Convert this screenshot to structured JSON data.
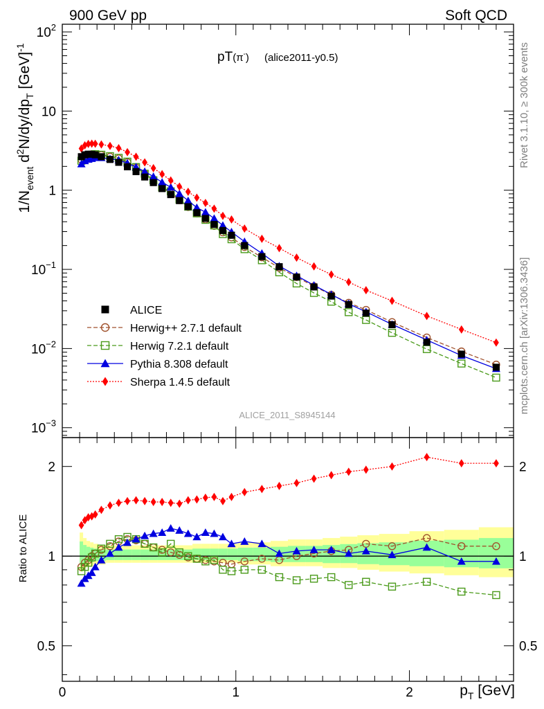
{
  "header": {
    "left": "900 GeV pp",
    "right": "Soft QCD"
  },
  "side": {
    "top": "Rivet 3.1.10, ≥ 300k events",
    "bottom": "mcplots.cern.ch [arXiv:1306.3436]"
  },
  "plot": {
    "title_main": "pT",
    "title_paren_open": "(",
    "title_pi": "π",
    "title_minus": "-",
    "title_paren_close": ")",
    "title_sub": "(alice2011-y0.5)",
    "watermark": "ALICE_2011_S8945144"
  },
  "axes": {
    "ylabel_main": {
      "a": "1/N",
      "b": "event",
      "c": " d",
      "d": "2",
      "e": "N/dy/dp",
      "f": "T",
      "g": " [GeV]",
      "h": "-1"
    },
    "ylabel_ratio": "Ratio to ALICE",
    "xlabel": {
      "a": "p",
      "b": "T",
      "c": " [GeV]"
    },
    "main_ticks": [
      {
        "v": 100,
        "base": "10",
        "exp": "2"
      },
      {
        "v": 10,
        "base": "10",
        "exp": ""
      },
      {
        "v": 1,
        "base": "1",
        "exp": ""
      },
      {
        "v": 0.1,
        "base": "10",
        "exp": "−1"
      },
      {
        "v": 0.01,
        "base": "10",
        "exp": "−2"
      },
      {
        "v": 0.001,
        "base": "10",
        "exp": "−3"
      }
    ],
    "ratio_ticks": [
      {
        "v": 2,
        "label": "2"
      },
      {
        "v": 1,
        "label": "1"
      },
      {
        "v": 0.5,
        "label": "0.5"
      }
    ],
    "x_ticks": [
      {
        "v": 0,
        "label": "0"
      },
      {
        "v": 1,
        "label": "1"
      },
      {
        "v": 2,
        "label": "2"
      }
    ]
  },
  "legend": {
    "ALICE": "ALICE",
    "herwigpp": "Herwig++ 2.7.1 default",
    "herwig7": "Herwig 7.2.1 default",
    "pythia": "Pythia 8.308 default",
    "sherpa": "Sherpa 1.4.5 default"
  },
  "colors": {
    "ALICE": "#000000",
    "herwigpp": "#a0522d",
    "herwig7": "#4a9a1a",
    "pythia": "#0000e0",
    "sherpa": "#ff0000",
    "band_inner": "#99ff99",
    "band_outer": "#ffff99"
  },
  "chart_data": {
    "type": "scatter",
    "main": {
      "yscale": "log",
      "ylim": [
        0.00075,
        125
      ],
      "xlim": [
        0,
        2.6
      ]
    },
    "ratio": {
      "yscale": "log",
      "ylim": [
        0.38,
        2.5
      ]
    },
    "x": [
      0.11,
      0.13,
      0.15,
      0.17,
      0.19,
      0.225,
      0.275,
      0.325,
      0.375,
      0.425,
      0.475,
      0.525,
      0.575,
      0.625,
      0.675,
      0.725,
      0.775,
      0.825,
      0.875,
      0.925,
      0.975,
      1.05,
      1.15,
      1.25,
      1.35,
      1.45,
      1.55,
      1.65,
      1.75,
      1.9,
      2.1,
      2.3,
      2.5
    ],
    "series": [
      {
        "name": "ALICE",
        "key": "ALICE",
        "values": [
          2.65,
          2.8,
          2.85,
          2.85,
          2.8,
          2.65,
          2.45,
          2.25,
          1.98,
          1.72,
          1.47,
          1.25,
          1.05,
          0.88,
          0.74,
          0.62,
          0.52,
          0.44,
          0.37,
          0.31,
          0.27,
          0.2,
          0.145,
          0.108,
          0.08,
          0.06,
          0.046,
          0.036,
          0.028,
          0.02,
          0.012,
          0.0085,
          0.0058
        ],
        "err_lo": [
          0.09,
          0.07,
          0.06,
          0.06,
          0.05,
          0.05,
          0.04,
          0.04,
          0.04,
          0.04,
          0.04,
          0.04,
          0.04,
          0.04,
          0.04,
          0.04,
          0.04,
          0.04,
          0.04,
          0.04,
          0.04,
          0.05,
          0.05,
          0.06,
          0.06,
          0.06,
          0.07,
          0.07,
          0.08,
          0.09,
          0.1,
          0.11,
          0.12
        ],
        "err_hi": [
          0.16,
          0.12,
          0.1,
          0.09,
          0.08,
          0.07,
          0.07,
          0.07,
          0.07,
          0.07,
          0.07,
          0.07,
          0.07,
          0.07,
          0.07,
          0.07,
          0.08,
          0.08,
          0.08,
          0.08,
          0.08,
          0.09,
          0.09,
          0.1,
          0.11,
          0.11,
          0.12,
          0.13,
          0.14,
          0.15,
          0.17,
          0.18,
          0.2
        ]
      },
      {
        "name": "Herwig++ 2.7.1 default",
        "key": "herwigpp",
        "ratio": [
          0.92,
          0.95,
          0.97,
          1.0,
          1.02,
          1.05,
          1.08,
          1.12,
          1.14,
          1.13,
          1.1,
          1.07,
          1.05,
          1.03,
          1.01,
          0.99,
          0.98,
          0.97,
          0.96,
          0.95,
          0.94,
          0.96,
          0.98,
          0.97,
          1.0,
          1.02,
          1.04,
          1.05,
          1.1,
          1.08,
          1.15,
          1.08,
          1.08
        ]
      },
      {
        "name": "Herwig 7.2.1 default",
        "key": "herwig7",
        "ratio": [
          0.89,
          0.92,
          0.95,
          0.99,
          1.02,
          1.06,
          1.1,
          1.14,
          1.16,
          1.14,
          1.1,
          1.07,
          1.03,
          1.1,
          1.03,
          1.0,
          0.98,
          0.96,
          0.97,
          0.9,
          0.89,
          0.9,
          0.9,
          0.85,
          0.83,
          0.84,
          0.85,
          0.8,
          0.82,
          0.79,
          0.82,
          0.76,
          0.74
        ]
      },
      {
        "name": "Pythia 8.308 default",
        "key": "pythia",
        "ratio": [
          0.81,
          0.84,
          0.86,
          0.88,
          0.92,
          0.97,
          1.02,
          1.07,
          1.11,
          1.14,
          1.17,
          1.19,
          1.2,
          1.24,
          1.22,
          1.19,
          1.16,
          1.2,
          1.19,
          1.16,
          1.1,
          1.12,
          1.1,
          1.02,
          1.04,
          1.05,
          1.05,
          1.02,
          1.04,
          1.01,
          1.07,
          0.96,
          0.96
        ]
      },
      {
        "name": "Sherpa 1.4.5 default",
        "key": "sherpa",
        "ratio": [
          1.27,
          1.32,
          1.35,
          1.36,
          1.38,
          1.43,
          1.48,
          1.51,
          1.53,
          1.54,
          1.53,
          1.52,
          1.52,
          1.51,
          1.5,
          1.54,
          1.55,
          1.57,
          1.58,
          1.53,
          1.58,
          1.64,
          1.68,
          1.72,
          1.76,
          1.82,
          1.87,
          1.92,
          1.95,
          2.0,
          2.15,
          2.05,
          2.05
        ]
      }
    ]
  }
}
